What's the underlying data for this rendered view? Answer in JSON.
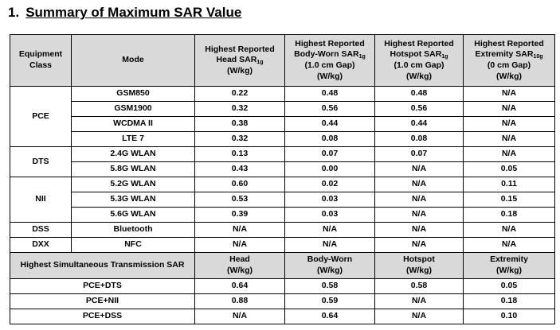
{
  "heading": {
    "number": "1.",
    "title": "Summary of Maximum SAR Value"
  },
  "header": {
    "equipment_class": "Equipment Class",
    "mode": "Mode",
    "head": {
      "line1": "Highest Reported",
      "line2": "Head SAR",
      "sub": "1g",
      "unit": "(W/kg)"
    },
    "body": {
      "line1": "Highest Reported",
      "line2": "Body-Worn SAR",
      "sub": "1g",
      "gap": "(1.0 cm Gap)",
      "unit": "(W/kg)"
    },
    "hotspot": {
      "line1": "Highest Reported",
      "line2": "Hotspot SAR",
      "sub": "1g",
      "gap": "(1.0 cm Gap)",
      "unit": "(W/kg)"
    },
    "extremity": {
      "line1": "Highest Reported",
      "line2": "Extremity SAR",
      "sub": "10g",
      "gap": "(0 cm Gap)",
      "unit": "(W/kg)"
    }
  },
  "classes": {
    "pce": "PCE",
    "dts": "DTS",
    "nii": "NII",
    "dss": "DSS",
    "dxx": "DXX"
  },
  "rows": [
    {
      "mode": "GSM850",
      "head": "0.22",
      "body": "0.48",
      "hotspot": "0.48",
      "extremity": "N/A"
    },
    {
      "mode": "GSM1900",
      "head": "0.32",
      "body": "0.56",
      "hotspot": "0.56",
      "extremity": "N/A"
    },
    {
      "mode": "WCDMA II",
      "head": "0.38",
      "body": "0.44",
      "hotspot": "0.44",
      "extremity": "N/A"
    },
    {
      "mode": "LTE 7",
      "head": "0.32",
      "body": "0.08",
      "hotspot": "0.08",
      "extremity": "N/A"
    },
    {
      "mode": "2.4G WLAN",
      "head": "0.13",
      "body": "0.07",
      "hotspot": "0.07",
      "extremity": "N/A"
    },
    {
      "mode": "5.8G WLAN",
      "head": "0.43",
      "body": "0.00",
      "hotspot": "N/A",
      "extremity": "0.05"
    },
    {
      "mode": "5.2G WLAN",
      "head": "0.60",
      "body": "0.02",
      "hotspot": "N/A",
      "extremity": "0.11"
    },
    {
      "mode": "5.3G WLAN",
      "head": "0.53",
      "body": "0.03",
      "hotspot": "N/A",
      "extremity": "0.15"
    },
    {
      "mode": "5.6G WLAN",
      "head": "0.39",
      "body": "0.03",
      "hotspot": "N/A",
      "extremity": "0.18"
    },
    {
      "mode": "Bluetooth",
      "head": "N/A",
      "body": "N/A",
      "hotspot": "N/A",
      "extremity": "N/A"
    },
    {
      "mode": "NFC",
      "head": "N/A",
      "body": "N/A",
      "hotspot": "N/A",
      "extremity": "N/A"
    }
  ],
  "simul_header": {
    "label": "Highest Simultaneous Transmission SAR",
    "head": "Head",
    "body": "Body-Worn",
    "hotspot": "Hotspot",
    "extremity": "Extremity",
    "unit": "(W/kg)"
  },
  "simul_rows": [
    {
      "combo": "PCE+DTS",
      "head": "0.64",
      "body": "0.58",
      "hotspot": "0.58",
      "extremity": "0.05"
    },
    {
      "combo": "PCE+NII",
      "head": "0.88",
      "body": "0.59",
      "hotspot": "N/A",
      "extremity": "0.18"
    },
    {
      "combo": "PCE+DSS",
      "head": "N/A",
      "body": "0.64",
      "hotspot": "N/A",
      "extremity": "0.10"
    }
  ]
}
